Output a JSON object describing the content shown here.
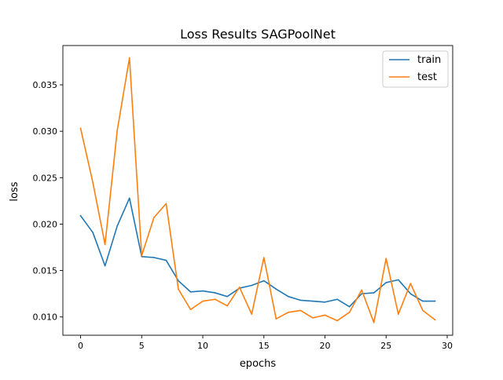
{
  "chart_data": {
    "type": "line",
    "title": "Loss Results SAGPoolNet",
    "xlabel": "epochs",
    "ylabel": "loss",
    "xlim": [
      -1.45,
      30.45
    ],
    "ylim": [
      0.00803,
      0.03923
    ],
    "xticks": [
      0,
      5,
      10,
      15,
      20,
      25,
      30
    ],
    "xtick_labels": [
      "0",
      "5",
      "10",
      "15",
      "20",
      "25",
      "30"
    ],
    "yticks": [
      0.01,
      0.015,
      0.02,
      0.025,
      0.03,
      0.035
    ],
    "ytick_labels": [
      "0.010",
      "0.015",
      "0.020",
      "0.025",
      "0.030",
      "0.035"
    ],
    "grid": false,
    "legend_position": "top-right",
    "x": [
      0,
      1,
      2,
      3,
      4,
      5,
      6,
      7,
      8,
      9,
      10,
      11,
      12,
      13,
      14,
      15,
      16,
      17,
      18,
      19,
      20,
      21,
      22,
      23,
      24,
      25,
      26,
      27,
      28,
      29
    ],
    "series": [
      {
        "name": "train",
        "color": "#1f77b4",
        "values": [
          0.0209,
          0.0191,
          0.0155,
          0.0198,
          0.0228,
          0.0165,
          0.0164,
          0.0161,
          0.0139,
          0.0127,
          0.0128,
          0.0126,
          0.0122,
          0.0131,
          0.0134,
          0.0139,
          0.013,
          0.0122,
          0.0118,
          0.0117,
          0.0116,
          0.0119,
          0.0111,
          0.0125,
          0.0126,
          0.0137,
          0.014,
          0.0125,
          0.0117,
          0.0117
        ]
      },
      {
        "name": "test",
        "color": "#ff7f0e",
        "values": [
          0.0303,
          0.0245,
          0.0178,
          0.0301,
          0.0379,
          0.0166,
          0.0207,
          0.0222,
          0.013,
          0.0108,
          0.0117,
          0.0119,
          0.0112,
          0.0132,
          0.0103,
          0.0164,
          0.0098,
          0.0105,
          0.0107,
          0.0099,
          0.0102,
          0.0096,
          0.0105,
          0.0129,
          0.0094,
          0.0163,
          0.0103,
          0.0136,
          0.0107,
          0.0097
        ]
      }
    ]
  }
}
